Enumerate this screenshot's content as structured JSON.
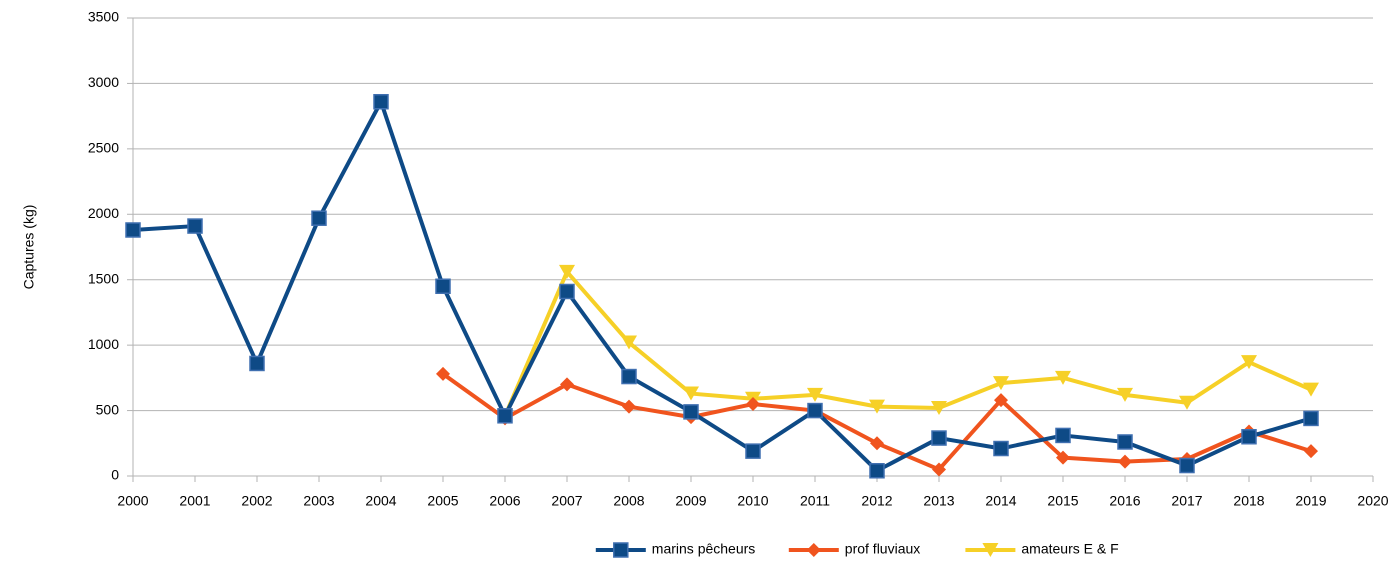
{
  "chart_data": {
    "type": "line",
    "y_label": "Captures (kg)",
    "x": [
      2000,
      2001,
      2002,
      2003,
      2004,
      2005,
      2006,
      2007,
      2008,
      2009,
      2010,
      2011,
      2012,
      2013,
      2014,
      2015,
      2016,
      2017,
      2018,
      2019
    ],
    "xlim": [
      2000,
      2020
    ],
    "xticks": [
      2000,
      2001,
      2002,
      2003,
      2004,
      2005,
      2006,
      2007,
      2008,
      2009,
      2010,
      2011,
      2012,
      2013,
      2014,
      2015,
      2016,
      2017,
      2018,
      2019,
      2020
    ],
    "ylim": [
      0,
      3500
    ],
    "yticks": [
      0,
      500,
      1000,
      1500,
      2000,
      2500,
      3000,
      3500
    ],
    "grid": true,
    "legend": "bottom",
    "series": [
      {
        "name": "marins pêcheurs",
        "color": "#0e4a86",
        "marker": "square",
        "values": [
          1880,
          1910,
          860,
          1970,
          2860,
          1450,
          460,
          1410,
          760,
          490,
          190,
          500,
          40,
          290,
          210,
          310,
          260,
          80,
          300,
          440
        ]
      },
      {
        "name": "prof fluviaux",
        "color": "#f0541e",
        "marker": "diamond",
        "values": [
          null,
          null,
          null,
          null,
          null,
          780,
          440,
          700,
          530,
          450,
          550,
          500,
          250,
          50,
          580,
          140,
          110,
          130,
          340,
          190
        ]
      },
      {
        "name": "amateurs E & F",
        "color": "#f6d027",
        "marker": "triangle-down",
        "values": [
          null,
          null,
          null,
          null,
          null,
          null,
          460,
          1560,
          1020,
          630,
          590,
          620,
          530,
          520,
          710,
          750,
          620,
          560,
          870,
          660
        ]
      }
    ]
  }
}
